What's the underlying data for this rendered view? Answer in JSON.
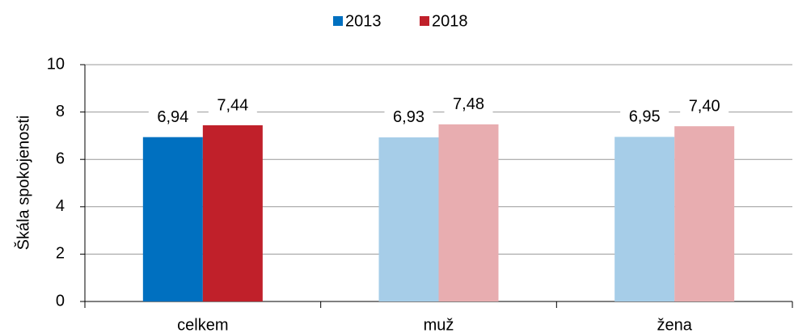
{
  "chart_data": {
    "type": "bar",
    "categories": [
      "celkem",
      "muž",
      "žena"
    ],
    "y_label": "Škála spokojenosti",
    "series": [
      {
        "name": "2013",
        "color": "#0070c0",
        "colors": [
          "#0070c0",
          "#a6cde8",
          "#a6cde8"
        ],
        "values": [
          6.94,
          6.93,
          6.95
        ],
        "value_labels": [
          "6,94",
          "6,93",
          "6,95"
        ]
      },
      {
        "name": "2018",
        "color": "#c0202a",
        "colors": [
          "#c0202a",
          "#e8adb0",
          "#e8adb0"
        ],
        "values": [
          7.44,
          7.48,
          7.4
        ],
        "value_labels": [
          "7,44",
          "7,48",
          "7,40"
        ]
      }
    ],
    "ylim": [
      0,
      10
    ],
    "yticks": [
      0,
      2,
      4,
      6,
      8,
      10
    ],
    "grid": true,
    "legend": "top"
  }
}
